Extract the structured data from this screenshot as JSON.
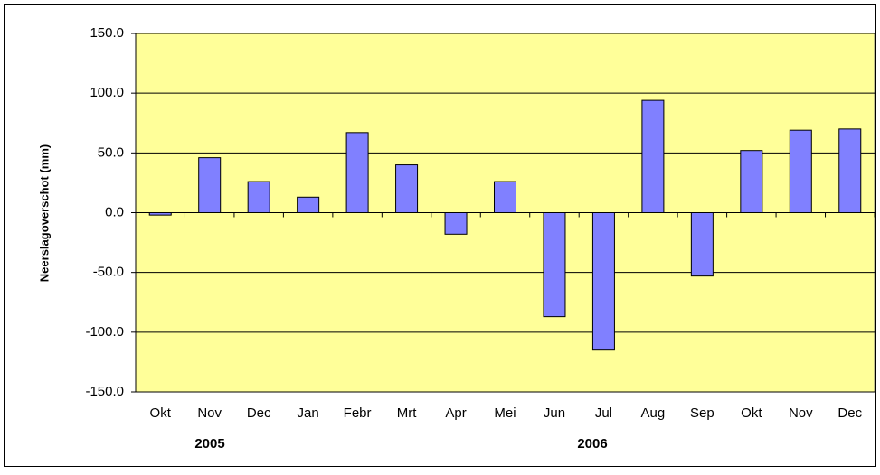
{
  "chart_data": {
    "type": "bar",
    "y_label": "Neerslagoverschot (mm)",
    "categories": [
      "Okt",
      "Nov",
      "Dec",
      "Jan",
      "Febr",
      "Mrt",
      "Apr",
      "Mei",
      "Jun",
      "Jul",
      "Aug",
      "Sep",
      "Okt",
      "Nov",
      "Dec"
    ],
    "values": [
      -2,
      46,
      26,
      13,
      67,
      40,
      -18,
      26,
      -87,
      -115,
      94,
      -53,
      52,
      69,
      70
    ],
    "color": "#8080ff",
    "background": "#ffff99",
    "ylim": [
      -150,
      150
    ],
    "yticks": [
      {
        "value": -150,
        "label": "-150.0"
      },
      {
        "value": -100,
        "label": "-100.0"
      },
      {
        "value": -50,
        "label": "-50.0"
      },
      {
        "value": 0,
        "label": "0.0"
      },
      {
        "value": 50,
        "label": "50.0"
      },
      {
        "value": 100,
        "label": "100.0"
      },
      {
        "value": 150,
        "label": "150.0"
      }
    ],
    "grid": true,
    "annotations": [
      "2005",
      "2006"
    ]
  }
}
